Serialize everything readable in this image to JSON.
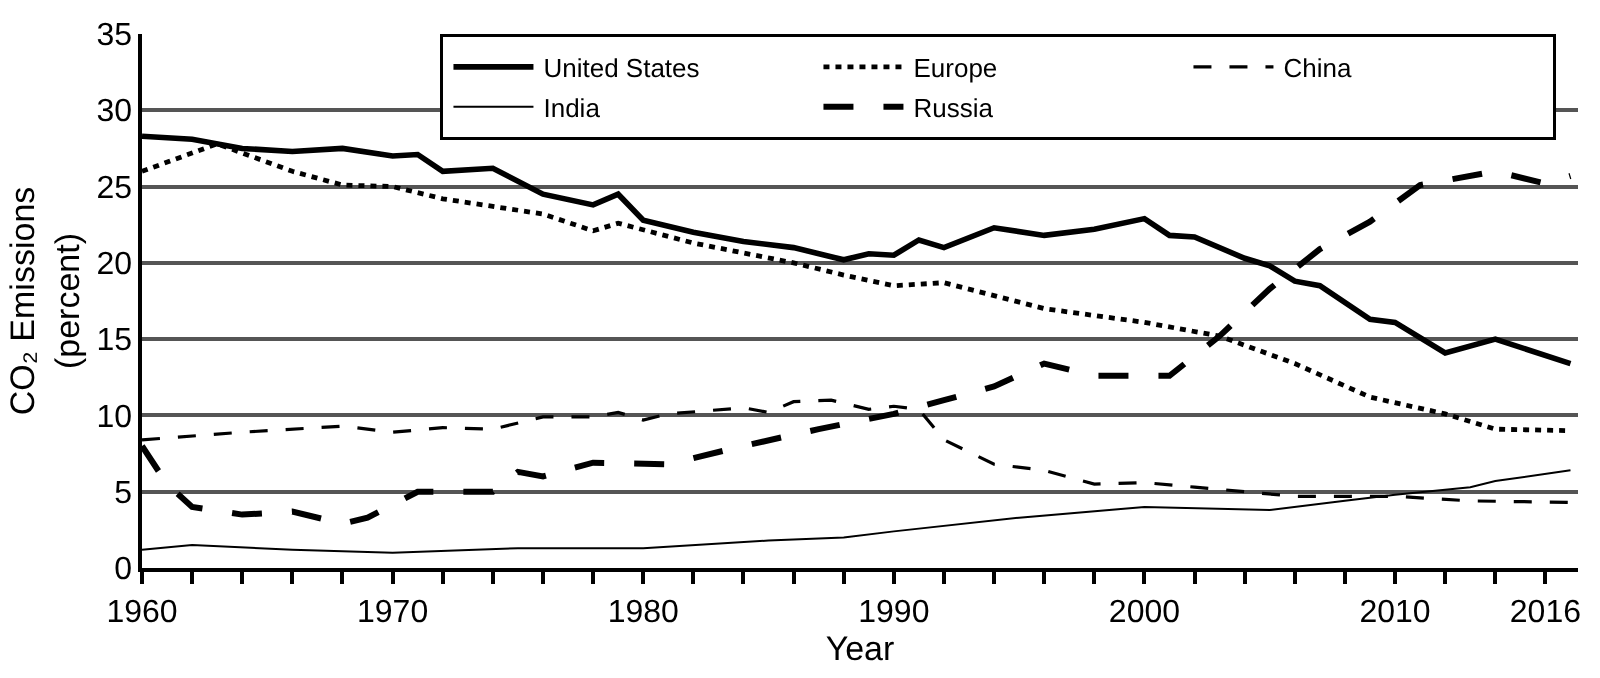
{
  "chart_data": {
    "type": "line",
    "xlabel": "Year",
    "ylabel": "CO₂ Emissions\n(percent)",
    "xlim": [
      1960,
      2017.3
    ],
    "ylim": [
      0,
      35
    ],
    "xticks": [
      1960,
      {
        "value": 1962,
        "label": null
      },
      {
        "value": 1964,
        "label": null
      },
      {
        "value": 1966,
        "label": null
      },
      {
        "value": 1968,
        "label": null
      },
      1970,
      {
        "value": 1972,
        "label": null
      },
      {
        "value": 1974,
        "label": null
      },
      {
        "value": 1976,
        "label": null
      },
      {
        "value": 1978,
        "label": null
      },
      1980,
      {
        "value": 1982,
        "label": null
      },
      {
        "value": 1984,
        "label": null
      },
      {
        "value": 1986,
        "label": null
      },
      {
        "value": 1988,
        "label": null
      },
      1990,
      {
        "value": 1992,
        "label": null
      },
      {
        "value": 1994,
        "label": null
      },
      {
        "value": 1996,
        "label": null
      },
      {
        "value": 1998,
        "label": null
      },
      2000,
      {
        "value": 2002,
        "label": null
      },
      {
        "value": 2004,
        "label": null
      },
      {
        "value": 2006,
        "label": null
      },
      {
        "value": 2008,
        "label": null
      },
      2010,
      {
        "value": 2012,
        "label": null
      },
      {
        "value": 2014,
        "label": null
      },
      2016
    ],
    "yticks": [
      0,
      5,
      10,
      15,
      20,
      25,
      30,
      35
    ],
    "grid": "y",
    "legend": "top right",
    "marker": "none",
    "series": [
      {
        "name": "United States",
        "color": "#000000",
        "line_style": "solid",
        "x": [
          1960,
          1962,
          1964,
          1966,
          1968,
          1970,
          1971,
          1972,
          1974,
          1976,
          1978,
          1979,
          1980,
          1982,
          1984,
          1986,
          1988,
          1989,
          1990,
          1991,
          1992,
          1994,
          1996,
          1998,
          2000,
          2001,
          2002,
          2004,
          2005,
          2006,
          2007,
          2009,
          2010,
          2012,
          2014,
          2017
        ],
        "values": [
          28.3,
          28.1,
          27.5,
          27.3,
          27.5,
          27.0,
          27.1,
          26.0,
          26.2,
          24.5,
          23.8,
          24.5,
          22.8,
          22.0,
          21.4,
          21.0,
          20.2,
          20.6,
          20.5,
          21.5,
          21.0,
          22.3,
          21.8,
          22.2,
          22.9,
          21.8,
          21.7,
          20.3,
          19.8,
          18.8,
          18.5,
          16.3,
          16.1,
          14.1,
          15.0,
          13.4
        ]
      },
      {
        "name": "Europe",
        "color": "#000000",
        "line_style": "dotted",
        "x": [
          1960,
          1963,
          1966,
          1968,
          1970,
          1972,
          1976,
          1978,
          1979,
          1982,
          1986,
          1988,
          1990,
          1992,
          1996,
          2000,
          2003,
          2006,
          2009,
          2012,
          2014,
          2017
        ],
        "values": [
          26.0,
          27.8,
          26.0,
          25.1,
          25.0,
          24.2,
          23.2,
          22.1,
          22.6,
          21.3,
          20.0,
          19.2,
          18.5,
          18.7,
          17.0,
          16.1,
          15.2,
          13.4,
          11.2,
          10.1,
          9.1,
          9.0
        ]
      },
      {
        "name": "China",
        "color": "#000000",
        "line_style": "dashed",
        "x": [
          1960,
          1964,
          1968,
          1970,
          1972,
          1974,
          1976,
          1978,
          1979,
          1980,
          1981,
          1984,
          1985,
          1986,
          1987.5,
          1989,
          1990,
          1991,
          1992,
          1994,
          1996,
          1998,
          2000,
          2002,
          2006,
          2010,
          2013,
          2017
        ],
        "values": [
          8.4,
          8.9,
          9.3,
          8.9,
          9.2,
          9.1,
          9.9,
          9.9,
          10.2,
          9.7,
          10.1,
          10.5,
          10.2,
          10.9,
          11.0,
          10.4,
          10.6,
          10.4,
          8.4,
          6.8,
          6.4,
          5.5,
          5.6,
          5.3,
          4.7,
          4.7,
          4.4,
          4.3
        ]
      },
      {
        "name": "India",
        "color": "#000000",
        "line_style": "solid",
        "x": [
          1960,
          1962,
          1966,
          1970,
          1975,
          1980,
          1985,
          1988,
          1990,
          1995,
          2000,
          2005,
          2008,
          2010,
          2013,
          2014,
          2017
        ],
        "values": [
          1.2,
          1.5,
          1.2,
          1.0,
          1.3,
          1.3,
          1.8,
          2.0,
          2.4,
          3.3,
          4.0,
          3.8,
          4.4,
          4.8,
          5.3,
          5.7,
          6.4
        ]
      },
      {
        "name": "Russia",
        "color": "#000000",
        "line_style": "longdash",
        "x": [
          1960,
          1961,
          1962,
          1964,
          1966,
          1968,
          1969,
          1971,
          1974,
          1975,
          1976,
          1978,
          1981,
          1984,
          1987,
          1990,
          1992,
          1994,
          1996,
          1998,
          2001,
          2003,
          2005,
          2007,
          2009,
          2011,
          2014,
          2016,
          2017
        ],
        "values": [
          8.0,
          5.5,
          4.0,
          3.5,
          3.7,
          2.9,
          3.3,
          5.0,
          5.0,
          6.3,
          6.0,
          6.9,
          6.8,
          8.0,
          9.1,
          10.1,
          11.0,
          11.9,
          13.4,
          12.6,
          12.6,
          15.2,
          18.3,
          20.9,
          22.7,
          25.1,
          26.0,
          25.2,
          25.7
        ]
      }
    ]
  }
}
